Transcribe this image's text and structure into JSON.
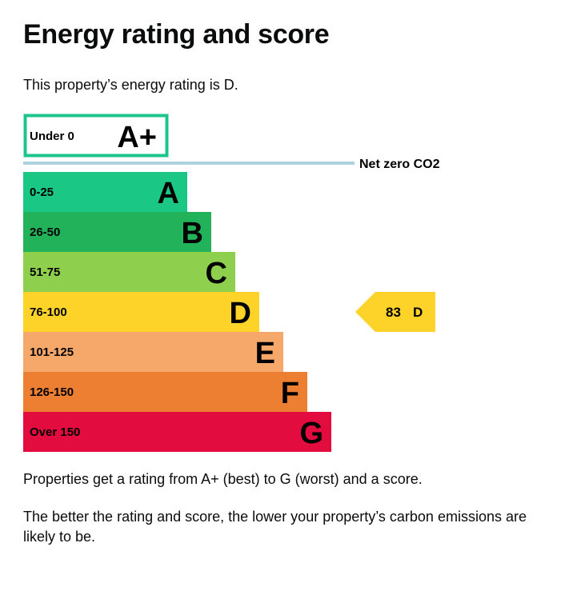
{
  "page": {
    "heading": "Energy rating and score",
    "intro": "This property’s energy rating is D.",
    "paragraph1": "Properties get a rating from A+ (best) to G (worst) and a score.",
    "paragraph2": "The better the rating and score, the lower your property’s carbon emissions are likely to be."
  },
  "chart_data": {
    "type": "bar",
    "net_zero_label": "Net zero CO2",
    "bands": [
      {
        "range": "Under 0",
        "letter": "A+",
        "color": "#1cc58b",
        "style": "outline"
      },
      {
        "range": "0-25",
        "letter": "A",
        "color": "#1ac784",
        "style": "filled"
      },
      {
        "range": "26-50",
        "letter": "B",
        "color": "#22b35a",
        "style": "filled"
      },
      {
        "range": "51-75",
        "letter": "C",
        "color": "#8ecf4e",
        "style": "filled"
      },
      {
        "range": "76-100",
        "letter": "D",
        "color": "#fdd32a",
        "style": "filled"
      },
      {
        "range": "101-125",
        "letter": "E",
        "color": "#f6a86b",
        "style": "filled"
      },
      {
        "range": "126-150",
        "letter": "F",
        "color": "#ec7f31",
        "style": "filled"
      },
      {
        "range": "Over 150",
        "letter": "G",
        "color": "#e30c3e",
        "style": "filled"
      }
    ],
    "current": {
      "score": "83",
      "rating": "D",
      "color": "#fdd32a"
    },
    "net_zero_line_color": "#aed3de"
  }
}
